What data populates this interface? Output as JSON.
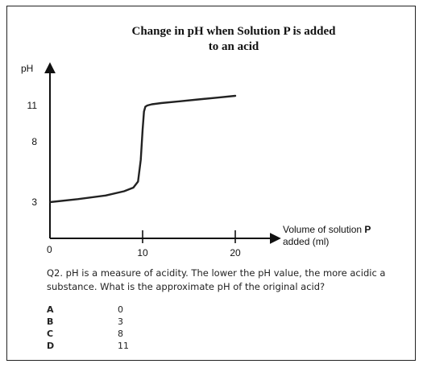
{
  "chart_data": {
    "type": "line",
    "title_line1": "Change in pH when Solution P is added",
    "title_line2": "to an acid",
    "ylabel": "pH",
    "xlabel_line1": "Volume of solution ",
    "xlabel_bold": "P",
    "xlabel_line2": "added (ml)",
    "x_origin_label": "0",
    "xlim": [
      0,
      20
    ],
    "ylim": [
      0,
      14
    ],
    "x_ticks": [
      "10",
      "20"
    ],
    "y_ticks": [
      "11",
      "8",
      "3"
    ],
    "series": [
      {
        "x": [
          0,
          3,
          6,
          8,
          9,
          9.5,
          9.8,
          10.0,
          10.15,
          10.3,
          10.5,
          11,
          12,
          14,
          16,
          18,
          20
        ],
        "y": [
          3.0,
          3.25,
          3.55,
          3.9,
          4.2,
          4.7,
          6.5,
          9.0,
          10.5,
          10.9,
          11.0,
          11.1,
          11.2,
          11.35,
          11.5,
          11.65,
          11.8
        ]
      }
    ]
  },
  "question": {
    "text": "Q2. pH is a measure of acidity. The lower the pH value, the more acidic a substance. What is the approximate pH of the original acid?",
    "options": [
      {
        "letter": "A",
        "value": "0"
      },
      {
        "letter": "B",
        "value": "3"
      },
      {
        "letter": "C",
        "value": "8"
      },
      {
        "letter": "D",
        "value": "11"
      }
    ]
  }
}
